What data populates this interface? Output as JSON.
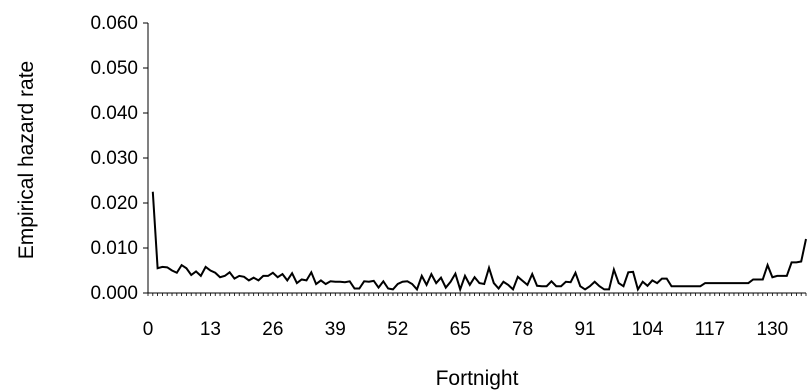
{
  "chart_data": {
    "type": "line",
    "title": "",
    "xlabel": "Fortnight",
    "ylabel": "Empirical hazard rate",
    "xlim": [
      0,
      137
    ],
    "ylim": [
      0,
      0.06
    ],
    "x_ticks": [
      0,
      13,
      26,
      39,
      52,
      65,
      78,
      91,
      104,
      117,
      130
    ],
    "x_tick_labels": [
      "0",
      "13",
      "26",
      "39",
      "52",
      "65",
      "78",
      "91",
      "104",
      "117",
      "130"
    ],
    "y_ticks": [
      0,
      0.01,
      0.02,
      0.03,
      0.04,
      0.05,
      0.06
    ],
    "y_tick_labels": [
      "0.000",
      "0.010",
      "0.020",
      "0.030",
      "0.040",
      "0.050",
      "0.060"
    ],
    "grid": false,
    "legend": "none",
    "series": [
      {
        "color": "#000000",
        "x": [
          1,
          2,
          3,
          4,
          5,
          6,
          7,
          8,
          9,
          10,
          11,
          12,
          13,
          14,
          15,
          16,
          17,
          18,
          19,
          20,
          21,
          22,
          23,
          24,
          25,
          26,
          27,
          28,
          29,
          30,
          31,
          32,
          33,
          34,
          35,
          36,
          37,
          38,
          39,
          40,
          41,
          42,
          43,
          44,
          45,
          46,
          47,
          48,
          49,
          50,
          51,
          52,
          53,
          54,
          55,
          56,
          57,
          58,
          59,
          60,
          61,
          62,
          63,
          64,
          65,
          66,
          67,
          68,
          69,
          70,
          71,
          72,
          73,
          74,
          75,
          76,
          77,
          78,
          79,
          80,
          81,
          82,
          83,
          84,
          85,
          86,
          87,
          88,
          89,
          90,
          91,
          92,
          93,
          94,
          95,
          96,
          97,
          98,
          99,
          100,
          101,
          102,
          103,
          104,
          105,
          106,
          107,
          108,
          109,
          110,
          111,
          112,
          113,
          114,
          115,
          116,
          117,
          118,
          119,
          120,
          121,
          122,
          123,
          124,
          125,
          126,
          127,
          128,
          129,
          130,
          131,
          132,
          133,
          134,
          135,
          136,
          137
        ],
        "y": [
          0.0225,
          0.0055,
          0.0058,
          0.0057,
          0.005,
          0.0045,
          0.0062,
          0.0055,
          0.004,
          0.0048,
          0.0038,
          0.0058,
          0.005,
          0.0045,
          0.0035,
          0.0038,
          0.0046,
          0.0032,
          0.0038,
          0.0036,
          0.0028,
          0.0034,
          0.0028,
          0.0038,
          0.0038,
          0.0045,
          0.0035,
          0.0042,
          0.0028,
          0.0044,
          0.0022,
          0.003,
          0.0028,
          0.0046,
          0.002,
          0.0028,
          0.002,
          0.0026,
          0.0025,
          0.0025,
          0.0024,
          0.0026,
          0.001,
          0.001,
          0.0026,
          0.0025,
          0.0027,
          0.0012,
          0.0026,
          0.001,
          0.0008,
          0.002,
          0.0025,
          0.0026,
          0.002,
          0.0008,
          0.0038,
          0.0018,
          0.0042,
          0.0022,
          0.0034,
          0.0012,
          0.0025,
          0.0043,
          0.0008,
          0.0038,
          0.0018,
          0.0035,
          0.0022,
          0.002,
          0.0056,
          0.0022,
          0.001,
          0.0025,
          0.0018,
          0.0008,
          0.0036,
          0.0027,
          0.0018,
          0.0042,
          0.0016,
          0.0015,
          0.0015,
          0.0026,
          0.0015,
          0.0015,
          0.0025,
          0.0024,
          0.0045,
          0.0015,
          0.0008,
          0.0015,
          0.0025,
          0.0015,
          0.0008,
          0.0008,
          0.0052,
          0.0022,
          0.0015,
          0.0046,
          0.0047,
          0.0008,
          0.0025,
          0.0016,
          0.0028,
          0.0022,
          0.0032,
          0.0032,
          0.0015,
          0.0015,
          0.0015,
          0.0015,
          0.0015,
          0.0015,
          0.0015,
          0.0022,
          0.0022,
          0.0022,
          0.0022,
          0.0022,
          0.0022,
          0.0022,
          0.0022,
          0.0022,
          0.0022,
          0.003,
          0.003,
          0.003,
          0.0062,
          0.0035,
          0.0038,
          0.0038,
          0.0038,
          0.0068,
          0.0068,
          0.007,
          0.012
        ]
      }
    ]
  }
}
